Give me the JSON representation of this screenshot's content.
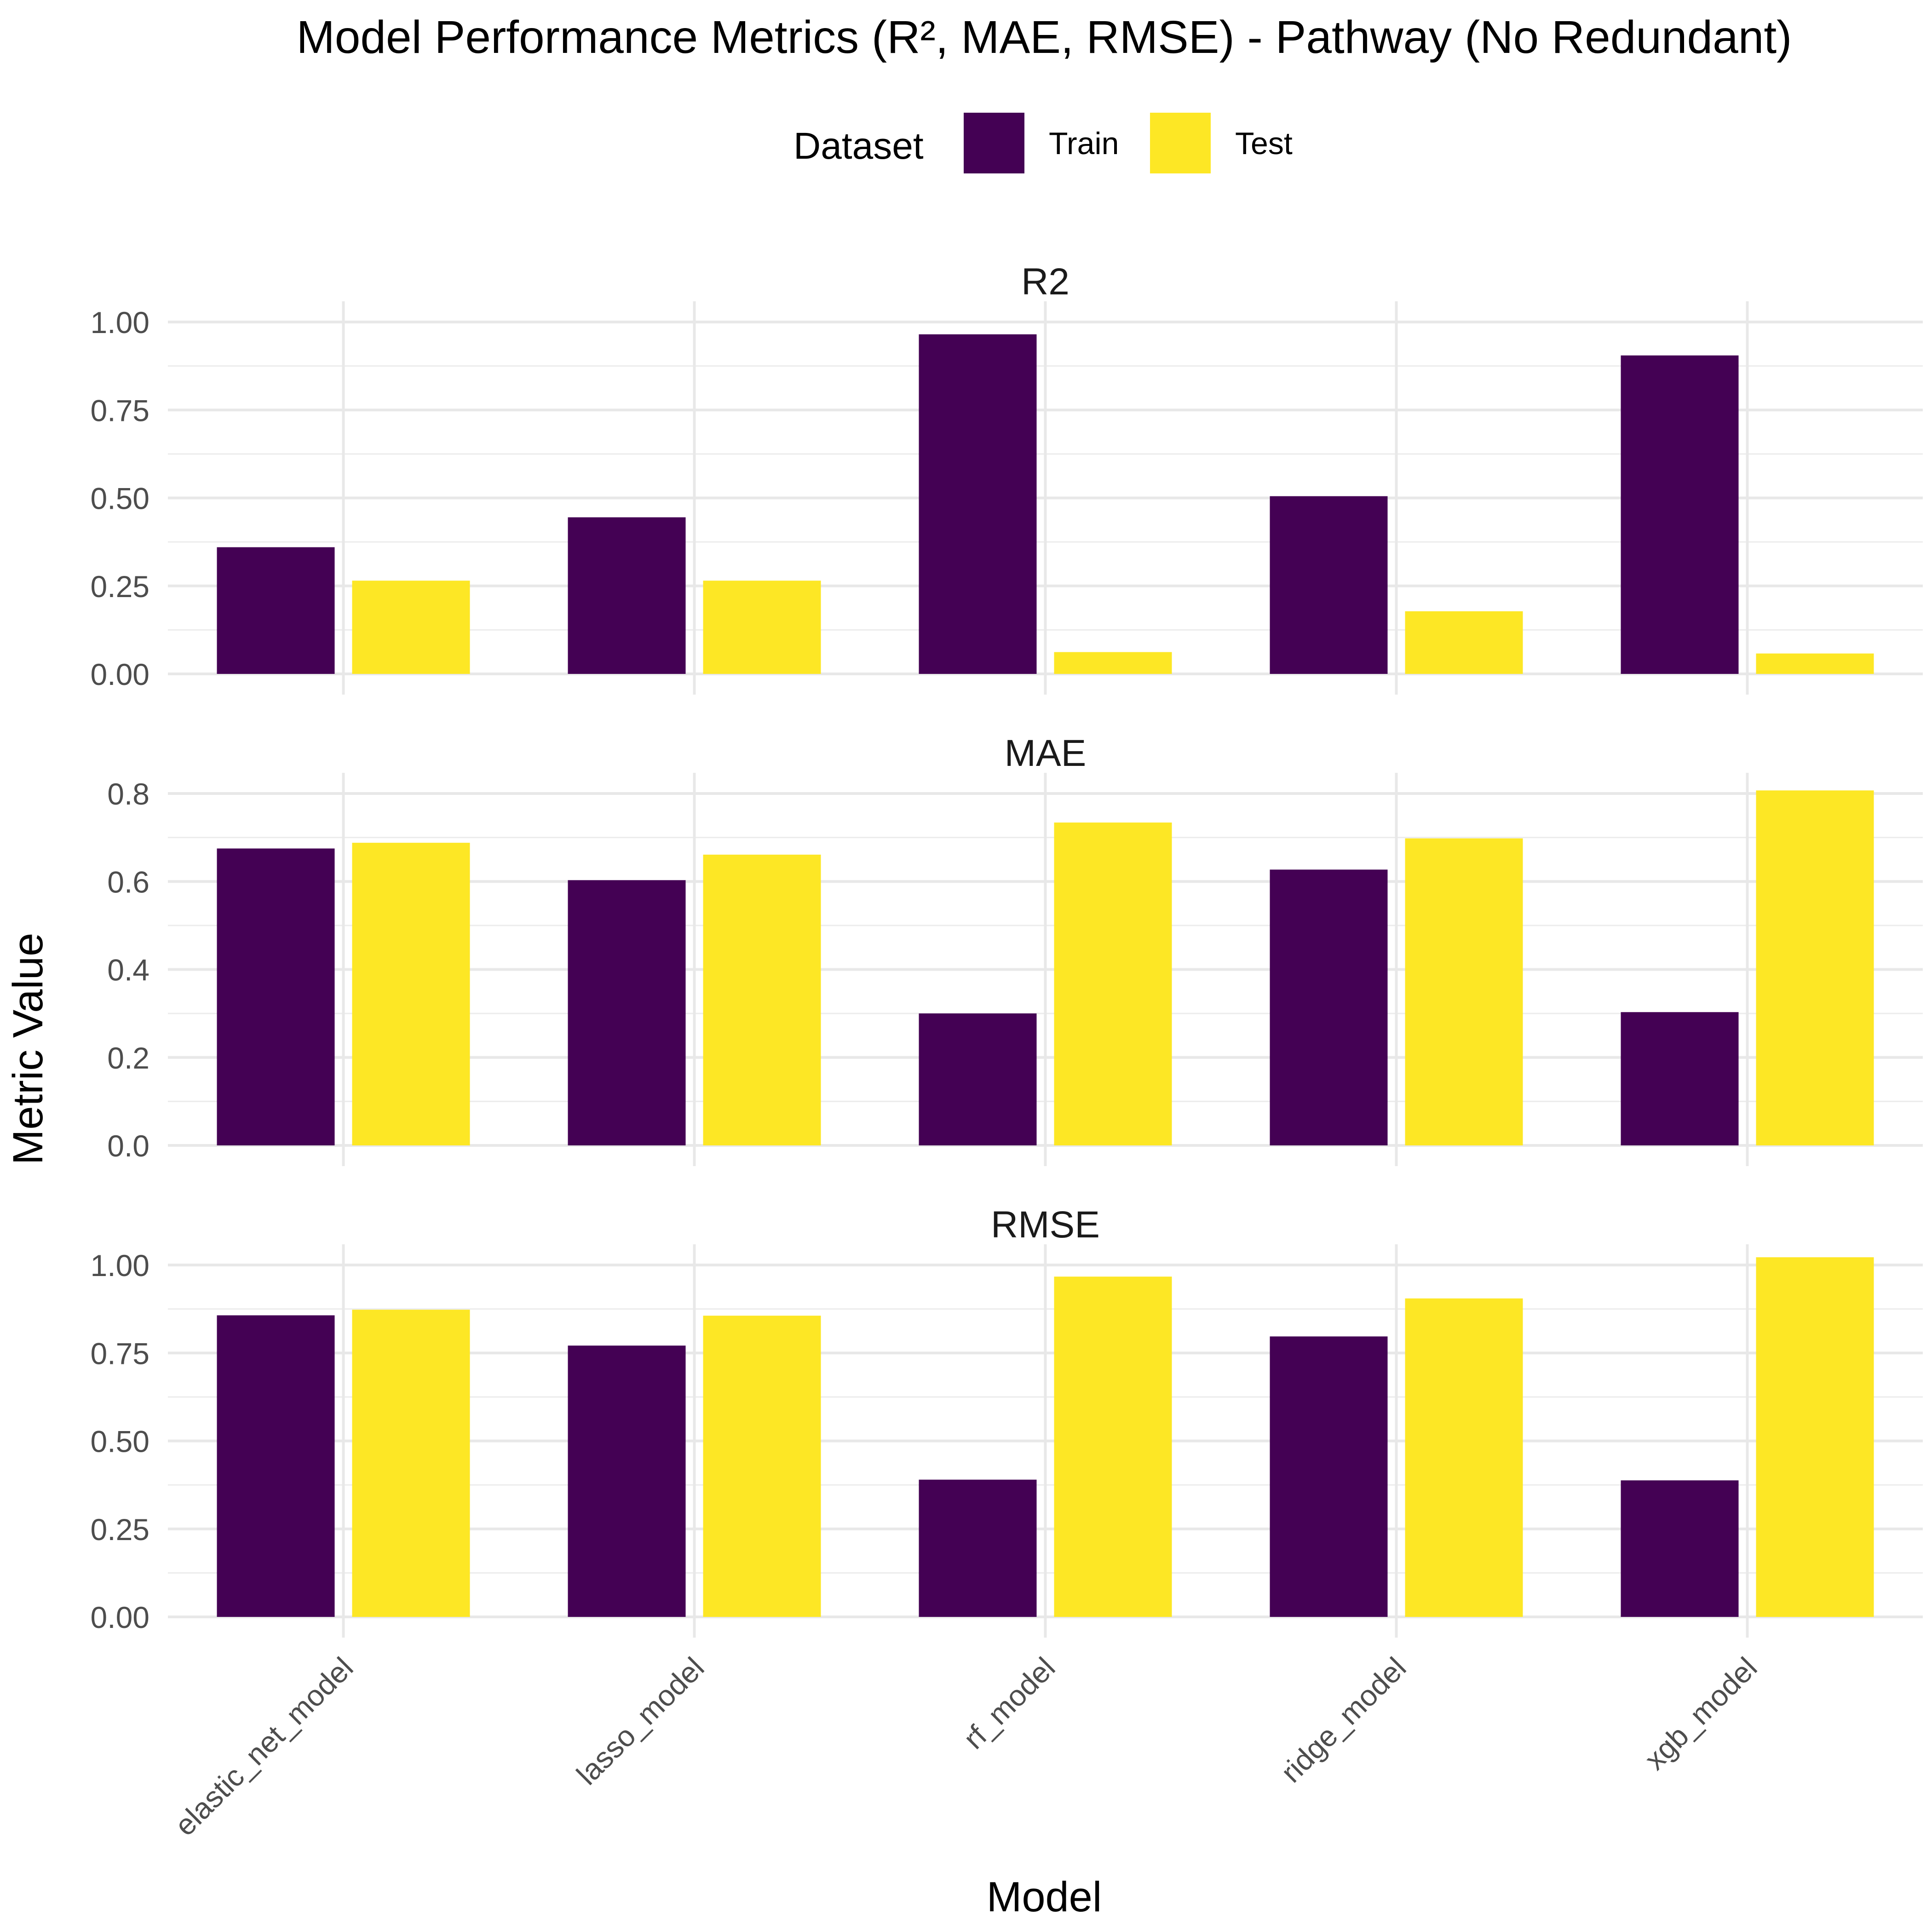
{
  "chart_data": {
    "type": "bar",
    "title": "Model Performance Metrics (R², MAE, RMSE) - Pathway (No Redundant)",
    "xlabel": "Model",
    "ylabel": "Metric Value",
    "legend": {
      "title": "Dataset",
      "placement": "top",
      "entries": [
        {
          "name": "Train",
          "color": "#440154"
        },
        {
          "name": "Test",
          "color": "#FDE725"
        }
      ]
    },
    "grid": true,
    "categories": [
      "elastic_net_model",
      "lasso_model",
      "rf_model",
      "ridge_model",
      "xgb_model"
    ],
    "facets": [
      {
        "label": "R2",
        "ylim": [
          0,
          1.0
        ],
        "ticks": [
          0,
          0.25,
          0.5,
          0.75,
          1.0
        ],
        "tick_labels": [
          "0.00",
          "0.25",
          "0.50",
          "0.75",
          "1.00"
        ],
        "series": [
          {
            "name": "Train",
            "values": [
              0.36,
              0.445,
              0.965,
              0.505,
              0.905
            ]
          },
          {
            "name": "Test",
            "values": [
              0.265,
              0.265,
              0.062,
              0.178,
              0.058
            ]
          }
        ]
      },
      {
        "label": "MAE",
        "ylim": [
          0,
          0.8
        ],
        "ticks": [
          0,
          0.2,
          0.4,
          0.6,
          0.8
        ],
        "tick_labels": [
          "0.0",
          "0.2",
          "0.4",
          "0.6",
          "0.8"
        ],
        "series": [
          {
            "name": "Train",
            "values": [
              0.675,
              0.603,
              0.3,
              0.627,
              0.303
            ]
          },
          {
            "name": "Test",
            "values": [
              0.688,
              0.661,
              0.734,
              0.698,
              0.807
            ]
          }
        ]
      },
      {
        "label": "RMSE",
        "ylim": [
          0,
          1.0
        ],
        "ticks": [
          0,
          0.25,
          0.5,
          0.75,
          1.0
        ],
        "tick_labels": [
          "0.00",
          "0.25",
          "0.50",
          "0.75",
          "1.00"
        ],
        "series": [
          {
            "name": "Train",
            "values": [
              0.857,
              0.771,
              0.39,
              0.797,
              0.388
            ]
          },
          {
            "name": "Test",
            "values": [
              0.873,
              0.856,
              0.967,
              0.905,
              1.022
            ]
          }
        ]
      }
    ]
  }
}
